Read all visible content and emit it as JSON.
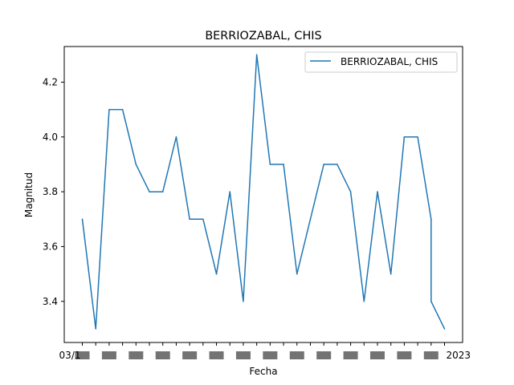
{
  "chart_data": {
    "type": "line",
    "title": "BERRIOZABAL, CHIS",
    "xlabel": "Fecha",
    "ylabel": "Magnitud",
    "ylim": [
      3.25,
      4.33
    ],
    "grid": false,
    "legend_position": "top-right",
    "x_tick_labels_note": "x tick labels are overlapping dates; only the first and last are partly legible",
    "x_first_tick": "03/1",
    "x_last_tick": "2023",
    "y_ticks": [
      "3.4",
      "3.6",
      "3.8",
      "4.0",
      "4.2"
    ],
    "series": [
      {
        "name": "BERRIOZABAL, CHIS",
        "color": "#1f77b4",
        "values": [
          3.7,
          3.3,
          4.1,
          4.1,
          3.9,
          3.8,
          3.8,
          4.0,
          3.7,
          3.7,
          3.5,
          3.8,
          3.4,
          4.3,
          3.9,
          3.9,
          3.5,
          3.7,
          3.9,
          3.9,
          3.8,
          3.4,
          3.8,
          3.5,
          4.0,
          4.0,
          3.7,
          3.4,
          3.3
        ]
      }
    ],
    "x_index": [
      0,
      1,
      2,
      3,
      4,
      5,
      6,
      7,
      8,
      9,
      10,
      11,
      12,
      13,
      14,
      15,
      16,
      17,
      18,
      19,
      20,
      21,
      22,
      23,
      24,
      25,
      26,
      26,
      27
    ]
  }
}
